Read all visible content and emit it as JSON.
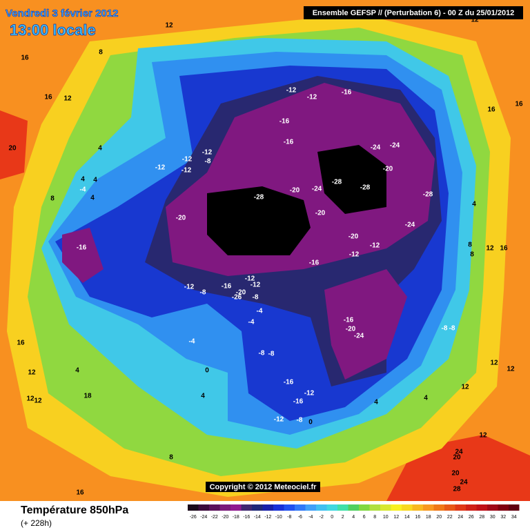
{
  "header": {
    "date": "Vendredi 3 février 2012",
    "time": "13:00 locale",
    "run": "Ensemble GEFSP // (Perturbation 6)  -  00 Z du 25/01/2012"
  },
  "footer": {
    "title": "Température 850hPa",
    "lead": "(+ 228h)",
    "copyright": "Copyright © 2012 Meteociel.fr"
  },
  "contour_labels": [
    -12,
    -12,
    -16,
    -16,
    -16,
    -24,
    -24,
    -20,
    -28,
    -28,
    -28,
    -24,
    -20,
    -28,
    -20,
    -20,
    -24,
    -20,
    -12,
    -12,
    -16,
    -16,
    -12,
    -12,
    -12,
    -8,
    -12,
    -12,
    -8,
    -16,
    -12,
    -12,
    -20,
    -26,
    -8,
    -4,
    -4,
    -4,
    -16,
    -20,
    -24,
    -8,
    -8,
    -8,
    -8,
    -16,
    -12,
    -16,
    -12,
    -8,
    0,
    0,
    4,
    4,
    4,
    12,
    12,
    12,
    12,
    16,
    8,
    8,
    4,
    16,
    16,
    12,
    12,
    16,
    12,
    16,
    8,
    4,
    4,
    4,
    -4,
    4,
    8,
    20,
    16,
    12,
    12,
    12,
    18,
    4,
    8,
    16,
    12,
    24,
    20,
    20,
    24,
    28
  ],
  "colorbar": {
    "ticks": [
      -26,
      -24,
      -22,
      -20,
      -18,
      -16,
      -14,
      -12,
      -10,
      -8,
      -6,
      -4,
      -2,
      0,
      2,
      4,
      6,
      8,
      10,
      12,
      14,
      16,
      18,
      20,
      22,
      24,
      26,
      28,
      30,
      32,
      34
    ],
    "colors": [
      "#1a0a1a",
      "#3a0a3a",
      "#5a105a",
      "#7a187a",
      "#901890",
      "#402870",
      "#202878",
      "#1820a8",
      "#1830d8",
      "#2050f0",
      "#3078f8",
      "#40a0f8",
      "#40c0f0",
      "#40d8e0",
      "#40e0a8",
      "#50d060",
      "#80d840",
      "#b0e040",
      "#d8e830",
      "#f8f020",
      "#f8d820",
      "#f8b820",
      "#f89820",
      "#f07818",
      "#e85818",
      "#e03818",
      "#d02018",
      "#c01018",
      "#a00818",
      "#800010",
      "#600010"
    ]
  }
}
